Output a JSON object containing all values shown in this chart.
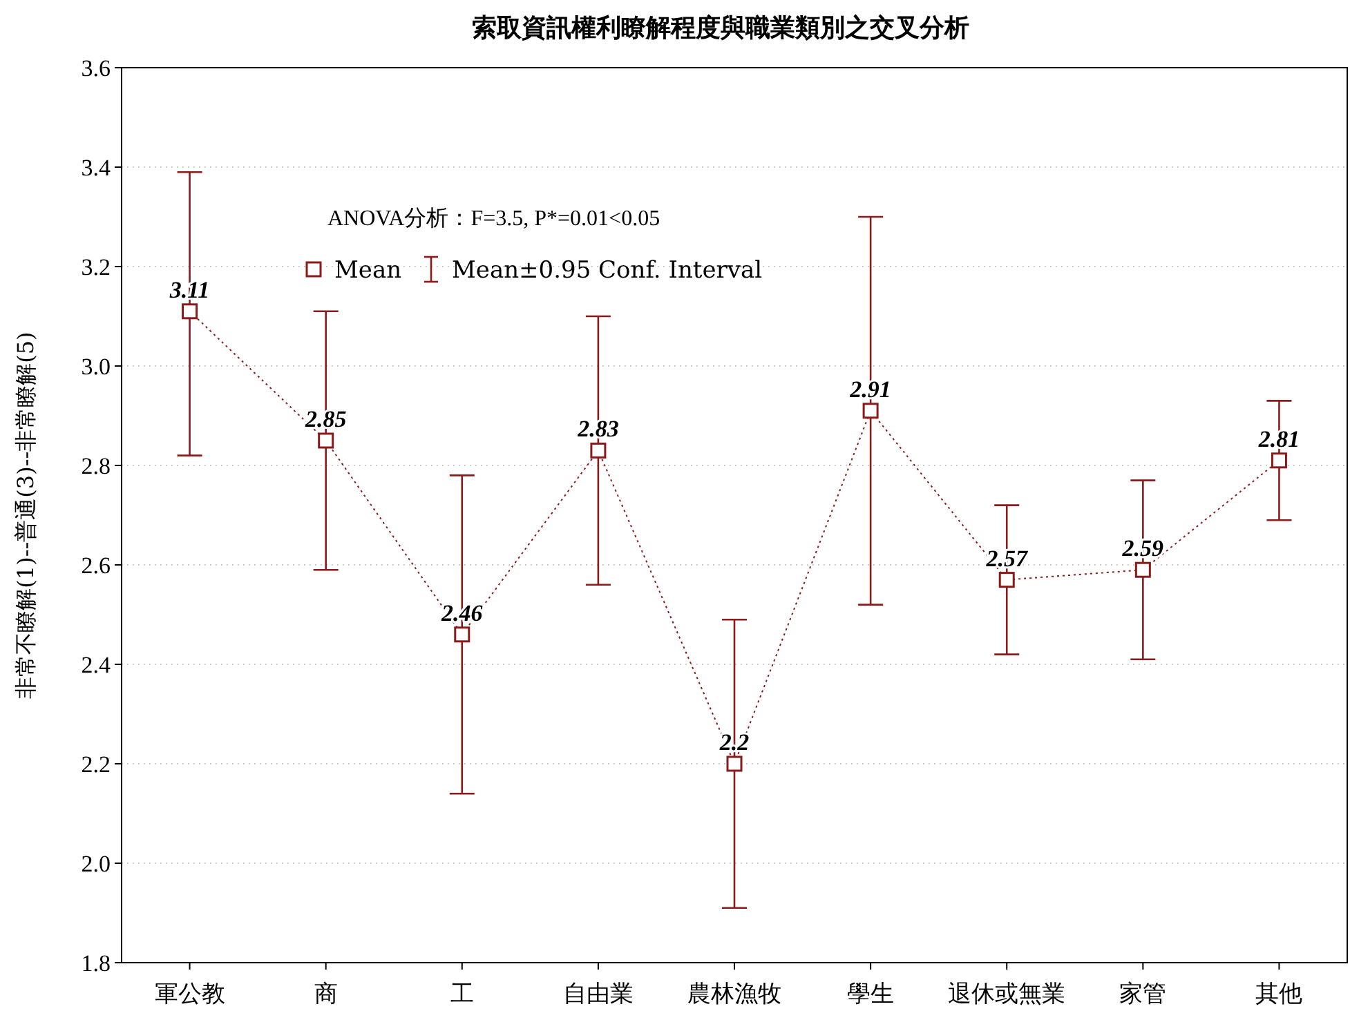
{
  "chart_data": {
    "type": "line",
    "title": "索取資訊權利瞭解程度與職業類別之交叉分析",
    "ylabel": "非常不瞭解(1)--普通(3)--非常瞭解(5)",
    "categories": [
      "軍公教",
      "商",
      "工",
      "自由業",
      "農林漁牧",
      "學生",
      "退休或無業",
      "家管",
      "其他"
    ],
    "series": [
      {
        "name": "Mean",
        "color": "#8b1a1a",
        "values": [
          3.11,
          2.85,
          2.46,
          2.83,
          2.2,
          2.91,
          2.57,
          2.59,
          2.81
        ],
        "errors": [
          [
            2.82,
            3.39
          ],
          [
            2.59,
            3.11
          ],
          [
            2.14,
            2.78
          ],
          [
            2.56,
            3.1
          ],
          [
            1.91,
            2.49
          ],
          [
            2.52,
            3.3
          ],
          [
            2.42,
            2.72
          ],
          [
            2.41,
            2.77
          ],
          [
            2.69,
            2.93
          ]
        ]
      }
    ],
    "annotations": [
      "ANOVA分析：F=3.5, P*=0.01<0.05",
      "Mean±0.95 Conf. Interval"
    ],
    "ylim": [
      1.8,
      3.6
    ],
    "yticks": [
      {
        "value": 1.8,
        "label": "1.8"
      },
      {
        "value": 2,
        "label": "2.0"
      },
      {
        "value": 2.2,
        "label": "2.2"
      },
      {
        "value": 2.4,
        "label": "2.4"
      },
      {
        "value": 2.6,
        "label": "2.6"
      },
      {
        "value": 2.8,
        "label": "2.8"
      },
      {
        "value": 3,
        "label": "3.0"
      },
      {
        "value": 3.2,
        "label": "3.2"
      },
      {
        "value": 3.4,
        "label": "3.4"
      },
      {
        "value": 3.6,
        "label": "3.6"
      }
    ],
    "grid": "y",
    "legend": "top left",
    "marker": "square",
    "line_style": "dotted",
    "data_labels": true
  }
}
